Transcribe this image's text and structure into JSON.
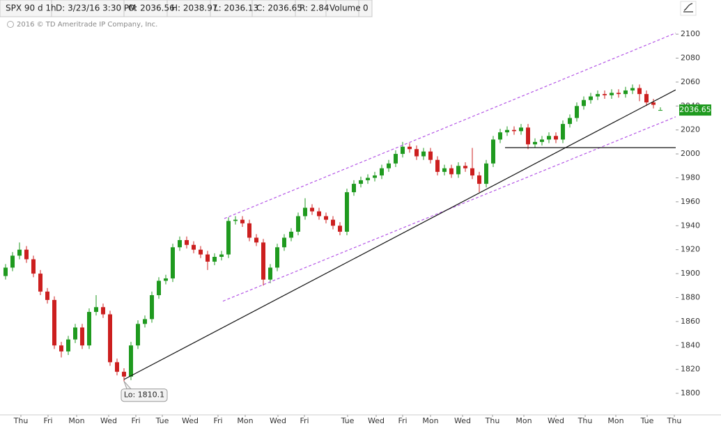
{
  "header": {
    "symbol": "SPX 90 d 1h",
    "date": "D: 3/23/16 3:30 PM",
    "open": "O: 2036.56",
    "high": "H: 2038.97",
    "low": "L: 2036.13",
    "close": "C: 2036.65",
    "range": "R: 2.84",
    "volume_label": "Volume",
    "volume": "0"
  },
  "copyright": "2016 © TD Ameritrade IP Company, Inc.",
  "chart_data": {
    "type": "candlestick",
    "x": [
      0,
      1,
      2,
      3,
      4,
      5,
      6,
      7,
      8,
      9,
      10,
      11,
      12,
      13,
      14,
      15,
      16,
      17,
      18,
      19,
      20,
      21,
      22,
      23,
      24,
      25,
      26,
      27,
      28,
      29,
      30,
      31,
      32,
      33,
      34,
      35,
      36,
      37,
      38,
      39,
      40,
      41,
      42,
      43,
      44,
      45,
      46,
      47,
      48,
      49,
      50,
      51,
      52,
      53,
      54,
      55,
      56,
      57,
      58,
      59,
      60,
      61,
      62,
      63,
      64,
      65,
      66,
      67,
      68,
      69,
      70,
      71,
      72,
      73,
      74,
      75,
      76,
      77,
      78,
      79,
      80,
      81,
      82,
      83,
      84,
      85,
      86,
      87,
      88,
      89,
      90,
      91,
      92,
      93,
      94
    ],
    "open": [
      1898,
      1905,
      1915,
      1920,
      1912,
      1900,
      1885,
      1878,
      1840,
      1835,
      1845,
      1855,
      1840,
      1868,
      1872,
      1866,
      1826,
      1818,
      1814,
      1840,
      1858,
      1862,
      1882,
      1894,
      1896,
      1922,
      1928,
      1924,
      1920,
      1916,
      1910,
      1914,
      1916,
      1944,
      1945,
      1942,
      1930,
      1926,
      1895,
      1905,
      1922,
      1930,
      1935,
      1948,
      1955,
      1952,
      1948,
      1945,
      1940,
      1935,
      1968,
      1975,
      1978,
      1980,
      1982,
      1988,
      1992,
      2000,
      2006,
      2004,
      1998,
      2002,
      1995,
      1985,
      1988,
      1983,
      1990,
      1988,
      1982,
      1975,
      1992,
      2012,
      2018,
      2020,
      2019,
      2022,
      2008,
      2010,
      2012,
      2015,
      2012,
      2025,
      2030,
      2040,
      2045,
      2048,
      2050,
      2049,
      2051,
      2050,
      2053,
      2055,
      2050,
      2043,
      2036.56
    ],
    "high": [
      1908,
      1918,
      1926,
      1923,
      1915,
      1903,
      1888,
      1881,
      1843,
      1848,
      1858,
      1858,
      1871,
      1882,
      1875,
      1869,
      1829,
      1821,
      1843,
      1861,
      1865,
      1885,
      1897,
      1899,
      1925,
      1931,
      1931,
      1927,
      1923,
      1919,
      1917,
      1919,
      1947,
      1948,
      1948,
      1945,
      1933,
      1929,
      1908,
      1925,
      1933,
      1938,
      1951,
      1963,
      1958,
      1955,
      1951,
      1948,
      1943,
      1971,
      1978,
      1981,
      1983,
      1985,
      1991,
      1995,
      2003,
      2010,
      2009,
      2007,
      2005,
      2005,
      1998,
      1991,
      1991,
      1993,
      1993,
      2005,
      1985,
      1995,
      2015,
      2021,
      2023,
      2023,
      2025,
      2025,
      2013,
      2015,
      2018,
      2018,
      2028,
      2033,
      2043,
      2048,
      2051,
      2053,
      2053,
      2054,
      2054,
      2056,
      2058,
      2058,
      2053,
      2046,
      2038.97
    ],
    "low": [
      1895,
      1902,
      1912,
      1909,
      1897,
      1882,
      1875,
      1837,
      1830,
      1832,
      1842,
      1837,
      1837,
      1865,
      1863,
      1823,
      1815,
      1810.1,
      1811,
      1837,
      1855,
      1859,
      1879,
      1891,
      1893,
      1919,
      1921,
      1917,
      1913,
      1903,
      1907,
      1911,
      1913,
      1941,
      1939,
      1927,
      1923,
      1890,
      1892,
      1902,
      1919,
      1927,
      1932,
      1945,
      1949,
      1945,
      1942,
      1937,
      1932,
      1932,
      1965,
      1972,
      1975,
      1977,
      1979,
      1985,
      1989,
      1997,
      2001,
      1995,
      1995,
      1992,
      1982,
      1982,
      1980,
      1980,
      1985,
      1979,
      1968,
      1972,
      1989,
      2009,
      2015,
      2016,
      2016,
      2004,
      2005,
      2007,
      2009,
      2009,
      2009,
      2022,
      2027,
      2037,
      2042,
      2045,
      2046,
      2046,
      2047,
      2047,
      2050,
      2044,
      2040,
      2038,
      2036.13
    ],
    "close": [
      1905,
      1915,
      1920,
      1912,
      1900,
      1885,
      1878,
      1840,
      1835,
      1845,
      1855,
      1840,
      1868,
      1872,
      1866,
      1826,
      1818,
      1814,
      1840,
      1858,
      1862,
      1882,
      1894,
      1896,
      1922,
      1928,
      1924,
      1920,
      1916,
      1910,
      1914,
      1916,
      1944,
      1945,
      1942,
      1930,
      1926,
      1895,
      1905,
      1922,
      1930,
      1935,
      1948,
      1955,
      1952,
      1948,
      1945,
      1940,
      1935,
      1968,
      1975,
      1978,
      1980,
      1982,
      1988,
      1992,
      2000,
      2006,
      2004,
      1998,
      2002,
      1995,
      1985,
      1988,
      1983,
      1990,
      1988,
      1982,
      1975,
      1992,
      2012,
      2018,
      2020,
      2019,
      2022,
      2008,
      2010,
      2012,
      2015,
      2012,
      2025,
      2030,
      2040,
      2045,
      2048,
      2050,
      2049,
      2051,
      2050,
      2053,
      2055,
      2050,
      2043,
      2041,
      2036.65
    ],
    "up_color": "#1f9a1f",
    "down_color": "#cc1f1f",
    "xlim": [
      0,
      96.5
    ],
    "xticks": [
      {
        "value": 2.2,
        "label": "Thu"
      },
      {
        "value": 6.1,
        "label": "Fri"
      },
      {
        "value": 10.2,
        "label": "Mon"
      },
      {
        "value": 14.8,
        "label": "Wed"
      },
      {
        "value": 18.7,
        "label": "Fri"
      },
      {
        "value": 22.5,
        "label": "Tue"
      },
      {
        "value": 26.5,
        "label": "Wed"
      },
      {
        "value": 30.5,
        "label": "Fri"
      },
      {
        "value": 34.4,
        "label": "Mon"
      },
      {
        "value": 39.1,
        "label": "Wed"
      },
      {
        "value": 42.9,
        "label": "Fri"
      },
      {
        "value": 49.1,
        "label": "Tue"
      },
      {
        "value": 53.2,
        "label": "Wed"
      },
      {
        "value": 57,
        "label": "Fri"
      },
      {
        "value": 61,
        "label": "Mon"
      },
      {
        "value": 65.6,
        "label": "Wed"
      },
      {
        "value": 69.9,
        "label": "Thu"
      },
      {
        "value": 74.4,
        "label": "Mon"
      },
      {
        "value": 79,
        "label": "Wed"
      },
      {
        "value": 83.2,
        "label": "Thu"
      },
      {
        "value": 87.6,
        "label": "Mon"
      },
      {
        "value": 92.1,
        "label": "Tue"
      },
      {
        "value": 96,
        "label": "Thu"
      }
    ],
    "ylim": [
      1785.5,
      2114.6
    ],
    "yticks": [
      1800,
      1820,
      1840,
      1860,
      1880,
      1900,
      1920,
      1940,
      1960,
      1980,
      2000,
      2020,
      2040,
      2060,
      2080,
      2100
    ],
    "last_price": {
      "value": 2036.65,
      "label": "2036.65"
    },
    "low_label": "Lo: 1810.1",
    "lines": [
      {
        "style": "dashed",
        "color": "#b455e6",
        "x": [
          31.4,
          96.2
        ],
        "y": [
          1946,
          2101
        ]
      },
      {
        "style": "dashed",
        "color": "#b455e6",
        "x": [
          31.2,
          96.2
        ],
        "y": [
          1877,
          2031
        ]
      },
      {
        "style": "solid",
        "color": "#111111",
        "x": [
          17,
          96.2
        ],
        "y": [
          1811.6,
          2053.5
        ]
      },
      {
        "style": "solid",
        "color": "#111111",
        "x": [
          71.7,
          96.5
        ],
        "y": [
          2005.2,
          2005.2
        ]
      }
    ]
  }
}
